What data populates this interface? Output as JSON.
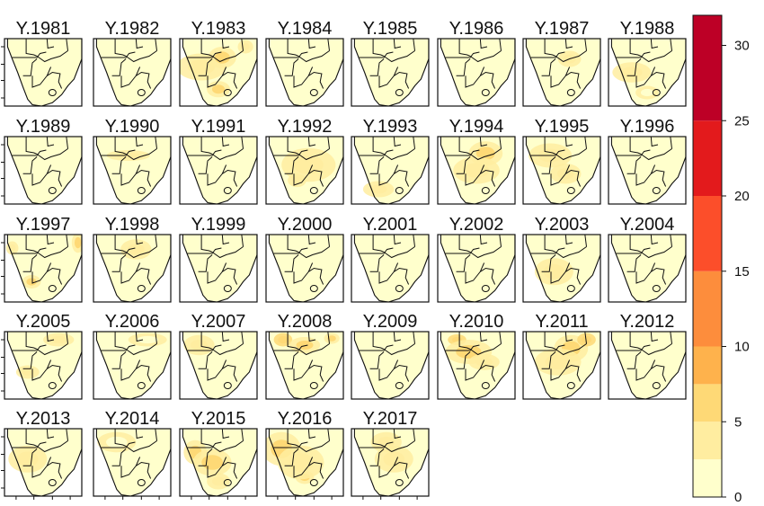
{
  "chart_data": {
    "type": "heatmap",
    "panel_titles": [
      "Y.1981",
      "Y.1982",
      "Y.1983",
      "Y.1984",
      "Y.1985",
      "Y.1986",
      "Y.1987",
      "Y.1988",
      "Y.1989",
      "Y.1990",
      "Y.1991",
      "Y.1992",
      "Y.1993",
      "Y.1994",
      "Y.1995",
      "Y.1996",
      "Y.1997",
      "Y.1998",
      "Y.1999",
      "Y.2000",
      "Y.2001",
      "Y.2002",
      "Y.2003",
      "Y.2004",
      "Y.2005",
      "Y.2006",
      "Y.2007",
      "Y.2008",
      "Y.2009",
      "Y.2010",
      "Y.2011",
      "Y.2012",
      "Y.2013",
      "Y.2014",
      "Y.2015",
      "Y.2016",
      "Y.2017"
    ],
    "colorbar": {
      "breaks": [
        0,
        2.5,
        5,
        7.5,
        10,
        15,
        20,
        25,
        32
      ],
      "colors": [
        "#ffffcc",
        "#ffeda0",
        "#fed976",
        "#feb24c",
        "#fd8d3c",
        "#fc4e2a",
        "#e31a1c",
        "#bd0026"
      ],
      "tick_labels": [
        "0",
        "5",
        "10",
        "15",
        "20",
        "25",
        "30"
      ],
      "tick_values": [
        0,
        5,
        10,
        15,
        20,
        25,
        30
      ]
    },
    "hotspots": {
      "Y.1983": [
        [
          0.28,
          0.42,
          4,
          0.32,
          0.2
        ],
        [
          0.55,
          0.28,
          5,
          0.18,
          0.16
        ],
        [
          0.5,
          0.75,
          5,
          0.15,
          0.12
        ],
        [
          0.85,
          0.12,
          4,
          0.1,
          0.1
        ]
      ],
      "Y.1987": [
        [
          0.6,
          0.3,
          3,
          0.15,
          0.12
        ]
      ],
      "Y.1988": [
        [
          0.3,
          0.5,
          3,
          0.25,
          0.15
        ],
        [
          0.5,
          0.8,
          2,
          0.15,
          0.1
        ]
      ],
      "Y.1990": [
        [
          0.45,
          0.28,
          4,
          0.28,
          0.08
        ]
      ],
      "Y.1992": [
        [
          0.55,
          0.42,
          3,
          0.35,
          0.25
        ],
        [
          0.4,
          0.65,
          3,
          0.12,
          0.1
        ]
      ],
      "Y.1993": [
        [
          0.35,
          0.78,
          4,
          0.2,
          0.12
        ]
      ],
      "Y.1994": [
        [
          0.62,
          0.25,
          6,
          0.22,
          0.18
        ],
        [
          0.5,
          0.5,
          3,
          0.3,
          0.2
        ]
      ],
      "Y.1995": [
        [
          0.35,
          0.28,
          4,
          0.28,
          0.18
        ],
        [
          0.55,
          0.55,
          3,
          0.2,
          0.15
        ]
      ],
      "Y.1997": [
        [
          0.95,
          0.12,
          6,
          0.08,
          0.15
        ],
        [
          0.35,
          0.7,
          5,
          0.12,
          0.1
        ],
        [
          0.1,
          0.2,
          4,
          0.08,
          0.1
        ]
      ],
      "Y.1998": [
        [
          0.55,
          0.22,
          3,
          0.2,
          0.15
        ]
      ],
      "Y.2003": [
        [
          0.4,
          0.55,
          3,
          0.25,
          0.2
        ]
      ],
      "Y.2005": [
        [
          0.7,
          0.12,
          3,
          0.2,
          0.1
        ],
        [
          0.3,
          0.6,
          3,
          0.15,
          0.1
        ]
      ],
      "Y.2006": [
        [
          0.7,
          0.12,
          2,
          0.25,
          0.1
        ]
      ],
      "Y.2007": [
        [
          0.25,
          0.2,
          3,
          0.2,
          0.15
        ]
      ],
      "Y.2008": [
        [
          0.22,
          0.12,
          7,
          0.12,
          0.1
        ],
        [
          0.5,
          0.2,
          5,
          0.2,
          0.12
        ],
        [
          0.85,
          0.1,
          5,
          0.1,
          0.08
        ]
      ],
      "Y.2010": [
        [
          0.25,
          0.12,
          7,
          0.12,
          0.08
        ],
        [
          0.4,
          0.3,
          5,
          0.3,
          0.18
        ],
        [
          0.6,
          0.45,
          4,
          0.2,
          0.12
        ]
      ],
      "Y.2011": [
        [
          0.62,
          0.25,
          6,
          0.22,
          0.2
        ],
        [
          0.82,
          0.12,
          7,
          0.12,
          0.1
        ],
        [
          0.45,
          0.45,
          4,
          0.3,
          0.2
        ]
      ],
      "Y.2013": [
        [
          0.3,
          0.45,
          3,
          0.25,
          0.2
        ]
      ],
      "Y.2014": [
        [
          0.3,
          0.2,
          2,
          0.25,
          0.15
        ]
      ],
      "Y.2015": [
        [
          0.2,
          0.35,
          6,
          0.15,
          0.18
        ],
        [
          0.42,
          0.5,
          5,
          0.25,
          0.2
        ],
        [
          0.5,
          0.78,
          3,
          0.15,
          0.12
        ]
      ],
      "Y.2016": [
        [
          0.2,
          0.3,
          5,
          0.25,
          0.25
        ],
        [
          0.5,
          0.72,
          6,
          0.12,
          0.1
        ],
        [
          0.45,
          0.5,
          4,
          0.3,
          0.25
        ]
      ],
      "Y.2017": [
        [
          0.45,
          0.2,
          4,
          0.2,
          0.15
        ],
        [
          0.55,
          0.45,
          3,
          0.25,
          0.2
        ]
      ]
    }
  }
}
